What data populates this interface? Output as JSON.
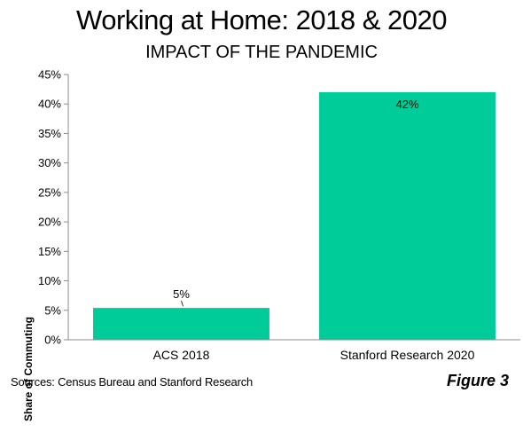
{
  "chart_data": {
    "type": "bar",
    "title": "Working at Home: 2018 & 2020",
    "subtitle": "IMPACT OF THE PANDEMIC",
    "xlabel": "",
    "ylabel": "Share of Commuting",
    "categories": [
      "ACS 2018",
      "Stanford Research 2020"
    ],
    "values": [
      5.4,
      42
    ],
    "data_labels": [
      "5%",
      "42%"
    ],
    "ylim": [
      0,
      45
    ],
    "yticks": [
      0,
      5,
      10,
      15,
      20,
      25,
      30,
      35,
      40,
      45
    ],
    "ytick_labels": [
      "0%",
      "5%",
      "10%",
      "15%",
      "20%",
      "25%",
      "30%",
      "35%",
      "40%",
      "45%"
    ],
    "grid": false,
    "legend": "none",
    "bar_color": "#00CC99"
  },
  "footer": {
    "source": "Sources: Census Bureau and Stanford Research",
    "figure_label": "Figure 3"
  }
}
